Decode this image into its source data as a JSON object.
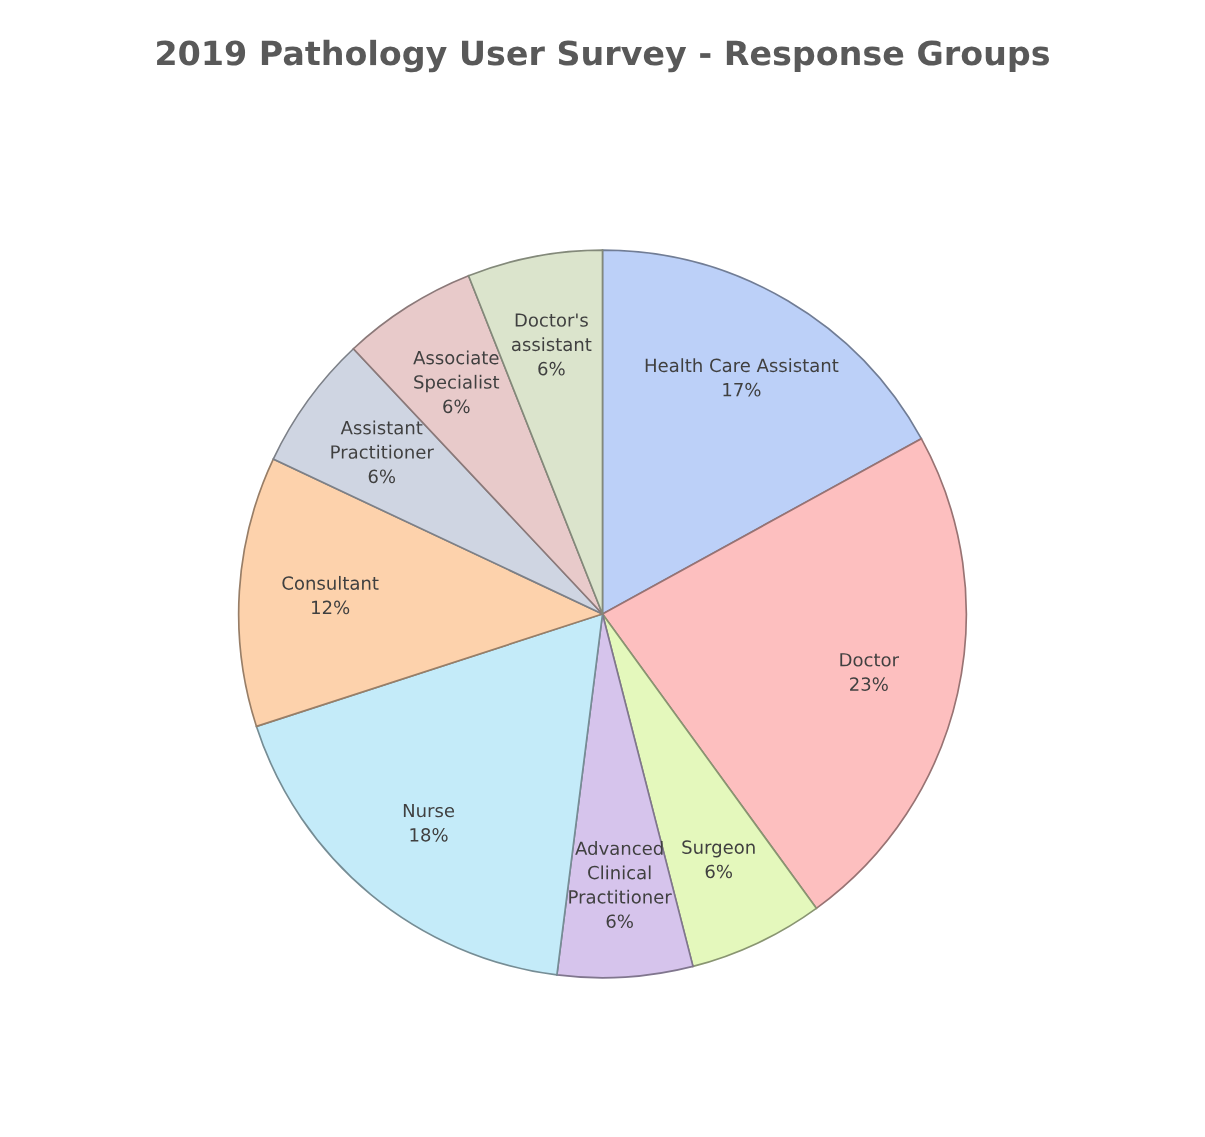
{
  "chart_data": {
    "type": "pie",
    "title": "2019 Pathology User Survey - Response Groups",
    "categories": [
      "Health Care Assistant",
      "Doctor",
      "Surgeon",
      "Advanced\nClinical\nPractitioner",
      "Nurse",
      "Consultant",
      "Assistant\nPractitioner",
      "Associate\nSpecialist",
      "Doctor's\nassistant"
    ],
    "values": [
      17,
      23,
      6,
      6,
      18,
      12,
      6,
      6,
      6
    ],
    "colors": [
      "#bcd0f8",
      "#fdbfbf",
      "#e4f8bc",
      "#d6c4ec",
      "#c4ebf9",
      "#fdd2ac",
      "#cfd5e2",
      "#e8caca",
      "#dbe4cc"
    ],
    "value_labels": [
      "17%",
      "23%",
      "6%",
      "6%",
      "18%",
      "12%",
      "6%",
      "6%",
      "6%"
    ]
  }
}
